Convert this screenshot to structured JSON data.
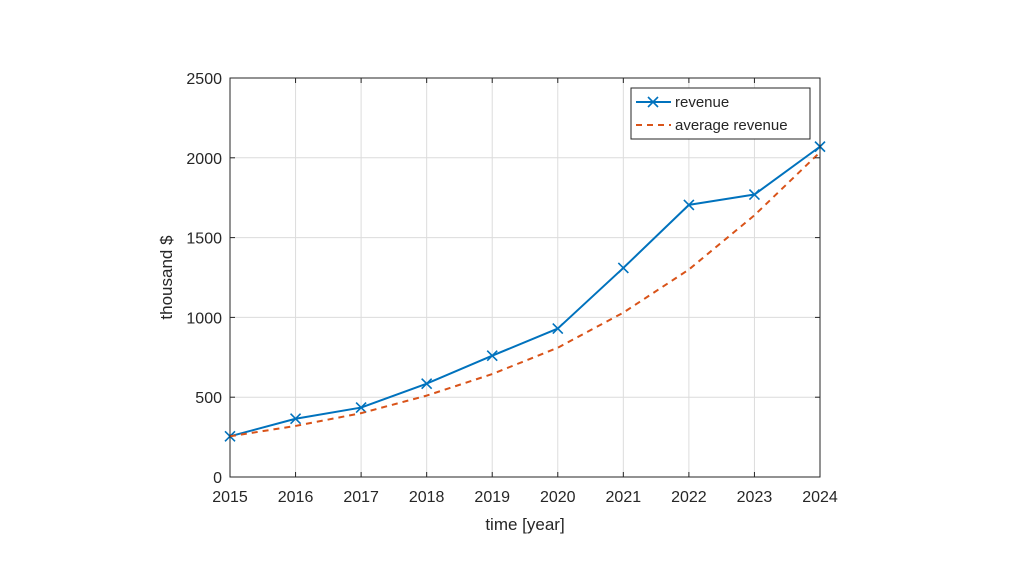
{
  "chart_data": {
    "type": "line",
    "title": "",
    "xlabel": "time [year]",
    "ylabel": "thousand $",
    "xlim": [
      2015,
      2024
    ],
    "ylim": [
      0,
      2500
    ],
    "x_ticks": [
      "2015",
      "2016",
      "2017",
      "2018",
      "2019",
      "2020",
      "2021",
      "2022",
      "2023",
      "2024"
    ],
    "y_ticks": [
      "0",
      "500",
      "1000",
      "1500",
      "2000",
      "2500"
    ],
    "x": [
      2015,
      2016,
      2017,
      2018,
      2019,
      2020,
      2021,
      2022,
      2023,
      2024
    ],
    "grid": true,
    "legend_position": "top-right",
    "series": [
      {
        "name": "revenue",
        "values": [
          255,
          365,
          435,
          585,
          760,
          930,
          1310,
          1705,
          1770,
          2070
        ],
        "color": "#0072BD",
        "line_style": "solid",
        "marker": "x"
      },
      {
        "name": "average revenue",
        "values": [
          255,
          320,
          400,
          510,
          645,
          810,
          1030,
          1300,
          1640,
          2035
        ],
        "color": "#D95319",
        "line_style": "dashed",
        "marker": "none"
      }
    ]
  }
}
